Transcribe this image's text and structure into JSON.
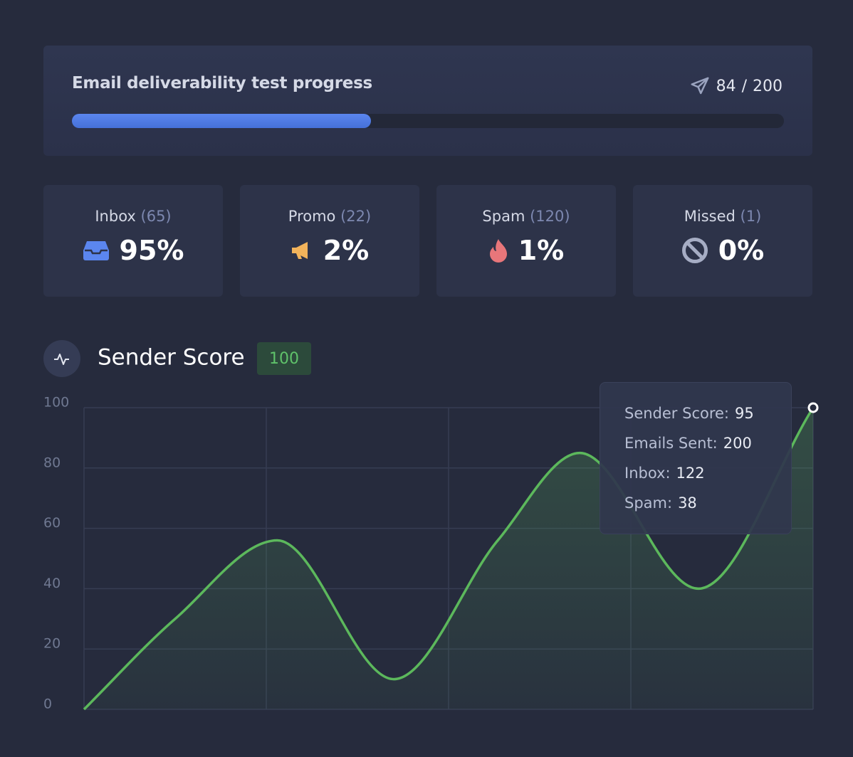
{
  "progress": {
    "title": "Email deliverability test progress",
    "sent": 84,
    "separator": "/",
    "total": 200
  },
  "stats": [
    {
      "name": "Inbox",
      "count": 65,
      "count_label": "(65)",
      "value": 95,
      "value_label": "95%"
    },
    {
      "name": "Promo",
      "count": 22,
      "count_label": "(22)",
      "value": 2,
      "value_label": "2%"
    },
    {
      "name": "Spam",
      "count": 120,
      "count_label": "(120)",
      "value": 1,
      "value_label": "1%"
    },
    {
      "name": "Missed",
      "count": 1,
      "count_label": "(1)",
      "value": 0,
      "value_label": "0%"
    }
  ],
  "chart_data": {
    "type": "line",
    "title": "Sender Score",
    "badge": 100,
    "x": [
      0,
      0.5,
      1.06,
      1.7,
      2.27,
      2.72,
      3.37,
      4
    ],
    "series": [
      {
        "name": "Sender Score",
        "color": "#5cb85c",
        "values": [
          0,
          30,
          56,
          10,
          56,
          85,
          40,
          100
        ]
      }
    ],
    "xlim": [
      0,
      4
    ],
    "xticks": [
      0,
      1,
      2,
      3,
      4
    ],
    "ylim": [
      0,
      100
    ],
    "yticks": [
      0,
      20,
      40,
      60,
      80,
      100
    ],
    "grid": true,
    "tooltip": [
      {
        "label": "Sender Score:",
        "value": 95
      },
      {
        "label": "Emails Sent:",
        "value": 200
      },
      {
        "label": "Inbox:",
        "value": 122
      },
      {
        "label": "Spam:",
        "value": 38
      }
    ]
  }
}
